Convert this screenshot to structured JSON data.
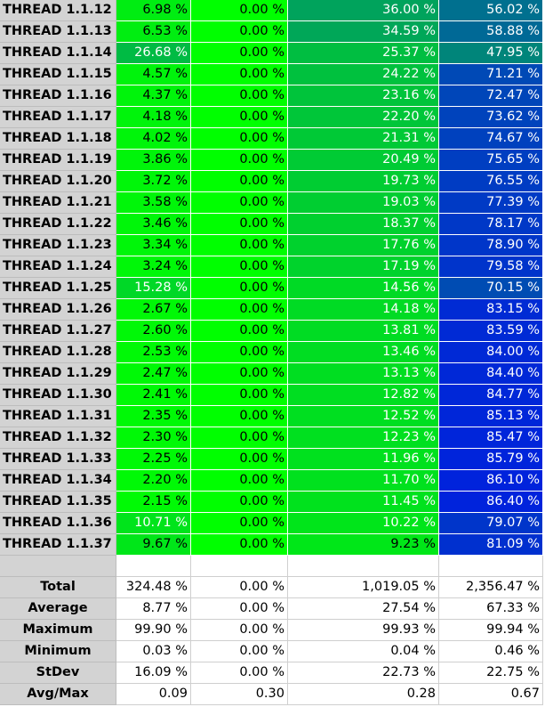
{
  "threads": [
    {
      "name": "THREAD 1.1.12",
      "v": [
        "6.98 %",
        "0.00 %",
        "36.00 %",
        "56.02 %"
      ]
    },
    {
      "name": "THREAD 1.1.13",
      "v": [
        "6.53 %",
        "0.00 %",
        "34.59 %",
        "58.88 %"
      ]
    },
    {
      "name": "THREAD 1.1.14",
      "v": [
        "26.68 %",
        "0.00 %",
        "25.37 %",
        "47.95 %"
      ]
    },
    {
      "name": "THREAD 1.1.15",
      "v": [
        "4.57 %",
        "0.00 %",
        "24.22 %",
        "71.21 %"
      ]
    },
    {
      "name": "THREAD 1.1.16",
      "v": [
        "4.37 %",
        "0.00 %",
        "23.16 %",
        "72.47 %"
      ]
    },
    {
      "name": "THREAD 1.1.17",
      "v": [
        "4.18 %",
        "0.00 %",
        "22.20 %",
        "73.62 %"
      ]
    },
    {
      "name": "THREAD 1.1.18",
      "v": [
        "4.02 %",
        "0.00 %",
        "21.31 %",
        "74.67 %"
      ]
    },
    {
      "name": "THREAD 1.1.19",
      "v": [
        "3.86 %",
        "0.00 %",
        "20.49 %",
        "75.65 %"
      ]
    },
    {
      "name": "THREAD 1.1.20",
      "v": [
        "3.72 %",
        "0.00 %",
        "19.73 %",
        "76.55 %"
      ]
    },
    {
      "name": "THREAD 1.1.21",
      "v": [
        "3.58 %",
        "0.00 %",
        "19.03 %",
        "77.39 %"
      ]
    },
    {
      "name": "THREAD 1.1.22",
      "v": [
        "3.46 %",
        "0.00 %",
        "18.37 %",
        "78.17 %"
      ]
    },
    {
      "name": "THREAD 1.1.23",
      "v": [
        "3.34 %",
        "0.00 %",
        "17.76 %",
        "78.90 %"
      ]
    },
    {
      "name": "THREAD 1.1.24",
      "v": [
        "3.24 %",
        "0.00 %",
        "17.19 %",
        "79.58 %"
      ]
    },
    {
      "name": "THREAD 1.1.25",
      "v": [
        "15.28 %",
        "0.00 %",
        "14.56 %",
        "70.15 %"
      ]
    },
    {
      "name": "THREAD 1.1.26",
      "v": [
        "2.67 %",
        "0.00 %",
        "14.18 %",
        "83.15 %"
      ]
    },
    {
      "name": "THREAD 1.1.27",
      "v": [
        "2.60 %",
        "0.00 %",
        "13.81 %",
        "83.59 %"
      ]
    },
    {
      "name": "THREAD 1.1.28",
      "v": [
        "2.53 %",
        "0.00 %",
        "13.46 %",
        "84.00 %"
      ]
    },
    {
      "name": "THREAD 1.1.29",
      "v": [
        "2.47 %",
        "0.00 %",
        "13.13 %",
        "84.40 %"
      ]
    },
    {
      "name": "THREAD 1.1.30",
      "v": [
        "2.41 %",
        "0.00 %",
        "12.82 %",
        "84.77 %"
      ]
    },
    {
      "name": "THREAD 1.1.31",
      "v": [
        "2.35 %",
        "0.00 %",
        "12.52 %",
        "85.13 %"
      ]
    },
    {
      "name": "THREAD 1.1.32",
      "v": [
        "2.30 %",
        "0.00 %",
        "12.23 %",
        "85.47 %"
      ]
    },
    {
      "name": "THREAD 1.1.33",
      "v": [
        "2.25 %",
        "0.00 %",
        "11.96 %",
        "85.79 %"
      ]
    },
    {
      "name": "THREAD 1.1.34",
      "v": [
        "2.20 %",
        "0.00 %",
        "11.70 %",
        "86.10 %"
      ]
    },
    {
      "name": "THREAD 1.1.35",
      "v": [
        "2.15 %",
        "0.00 %",
        "11.45 %",
        "86.40 %"
      ]
    },
    {
      "name": "THREAD 1.1.36",
      "v": [
        "10.71 %",
        "0.00 %",
        "10.22 %",
        "79.07 %"
      ]
    },
    {
      "name": "THREAD 1.1.37",
      "v": [
        "9.67 %",
        "0.00 %",
        "9.23 %",
        "81.09 %"
      ]
    }
  ],
  "stats": [
    {
      "name": "Total",
      "v": [
        "324.48 %",
        "0.00 %",
        "1,019.05 %",
        "2,356.47 %"
      ]
    },
    {
      "name": "Average",
      "v": [
        "8.77 %",
        "0.00 %",
        "27.54 %",
        "67.33 %"
      ]
    },
    {
      "name": "Maximum",
      "v": [
        "99.90 %",
        "0.00 %",
        "99.93 %",
        "99.94 %"
      ]
    },
    {
      "name": "Minimum",
      "v": [
        "0.03 %",
        "0.00 %",
        "0.04 %",
        "0.46 %"
      ]
    },
    {
      "name": "StDev",
      "v": [
        "16.09 %",
        "0.00 %",
        "22.73 %",
        "22.75 %"
      ]
    },
    {
      "name": "Avg/Max",
      "v": [
        "0.09",
        "0.30",
        "0.28",
        "0.67"
      ]
    }
  ],
  "colors": {
    "header_bg": "#d3d3d3",
    "heat_green": "#00ff00",
    "heat_blue": "#0000ff"
  }
}
